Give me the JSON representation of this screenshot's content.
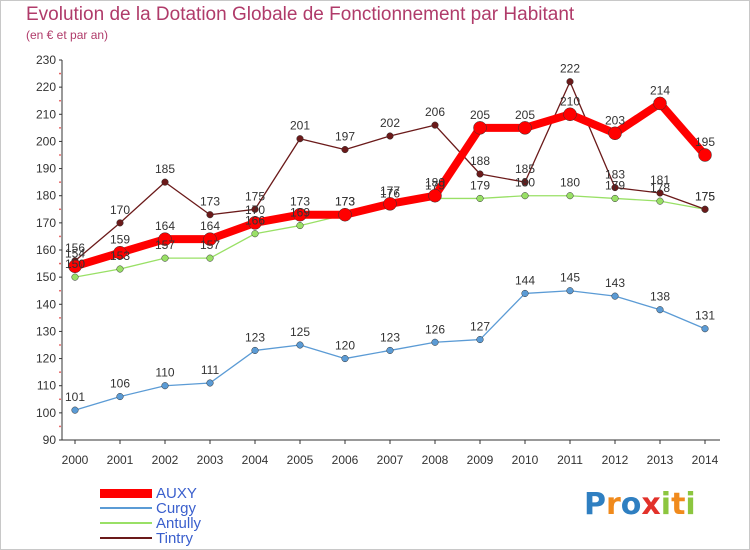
{
  "header": {
    "title": "Evolution de la Dotation Globale de Fonctionnement par Habitant",
    "subtitle": "(en € et par an)"
  },
  "logo": {
    "text": "Proxiti"
  },
  "colors": {
    "AUXY": "#ff0000",
    "Curgy": "#5b9bd5",
    "Antully": "#99e066",
    "Tintry": "#6b1a1a",
    "title": "#b03b6a",
    "legend_text": "#3a5fcd"
  },
  "chart_data": {
    "type": "line",
    "title": "Evolution de la Dotation Globale de Fonctionnement par Habitant",
    "subtitle": "(en € et par an)",
    "categories": [
      "2000",
      "2001",
      "2002",
      "2003",
      "2004",
      "2005",
      "2006",
      "2007",
      "2008",
      "2009",
      "2010",
      "2011",
      "2012",
      "2013",
      "2014"
    ],
    "ylim": [
      90,
      230
    ],
    "yticks": [
      90,
      100,
      110,
      120,
      130,
      140,
      150,
      160,
      170,
      180,
      190,
      200,
      210,
      220,
      230
    ],
    "grid": false,
    "legend_position": "bottom-left",
    "series": [
      {
        "name": "AUXY",
        "values": [
          154,
          159,
          164,
          164,
          170,
          173,
          173,
          177,
          180,
          205,
          205,
          210,
          203,
          214,
          195
        ]
      },
      {
        "name": "Curgy",
        "values": [
          101,
          106,
          110,
          111,
          123,
          125,
          120,
          123,
          126,
          127,
          144,
          145,
          143,
          138,
          131
        ]
      },
      {
        "name": "Antully",
        "values": [
          150,
          153,
          157,
          157,
          166,
          169,
          173,
          176,
          179,
          179,
          180,
          180,
          179,
          178,
          175
        ]
      },
      {
        "name": "Tintry",
        "values": [
          156,
          170,
          185,
          173,
          175,
          201,
          197,
          202,
          206,
          188,
          185,
          222,
          183,
          181,
          175
        ]
      }
    ]
  }
}
